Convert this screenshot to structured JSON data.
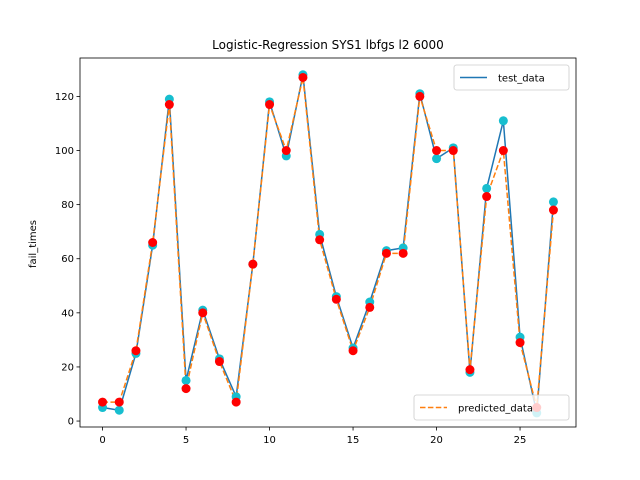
{
  "chart_data": {
    "type": "line",
    "title": "Logistic-Regression SYS1 lbfgs l2 6000",
    "xlabel": "",
    "ylabel": "fail_times",
    "xlim": [
      -1.35,
      28.35
    ],
    "ylim": [
      -2.2,
      134.2
    ],
    "xticks": [
      0,
      5,
      10,
      15,
      20,
      25
    ],
    "yticks": [
      0,
      20,
      40,
      60,
      80,
      100,
      120
    ],
    "grid": false,
    "x": [
      0,
      1,
      2,
      3,
      4,
      5,
      6,
      7,
      8,
      9,
      10,
      11,
      12,
      13,
      14,
      15,
      16,
      17,
      18,
      19,
      20,
      21,
      22,
      23,
      24,
      25,
      26,
      27
    ],
    "series": [
      {
        "name": "test_data",
        "style": "solid",
        "line_color": "#1f77b4",
        "marker_color": "#17becf",
        "values": [
          5,
          4,
          25,
          65,
          119,
          15,
          41,
          23,
          9,
          58,
          118,
          98,
          128,
          69,
          46,
          27,
          44,
          63,
          64,
          121,
          97,
          101,
          18,
          86,
          111,
          31,
          3,
          81
        ]
      },
      {
        "name": "predicted_data",
        "style": "dashed",
        "line_color": "#ff7f0e",
        "marker_color": "#ff0000",
        "values": [
          7,
          7,
          26,
          66,
          117,
          12,
          40,
          22,
          7,
          58,
          117,
          100,
          127,
          67,
          45,
          26,
          42,
          62,
          62,
          120,
          100,
          100,
          19,
          83,
          100,
          29,
          5,
          78
        ]
      }
    ],
    "legends": [
      {
        "entries": [
          "test_data"
        ],
        "placement": "upper right"
      },
      {
        "entries": [
          "predicted_data"
        ],
        "placement": "lower right"
      }
    ]
  }
}
